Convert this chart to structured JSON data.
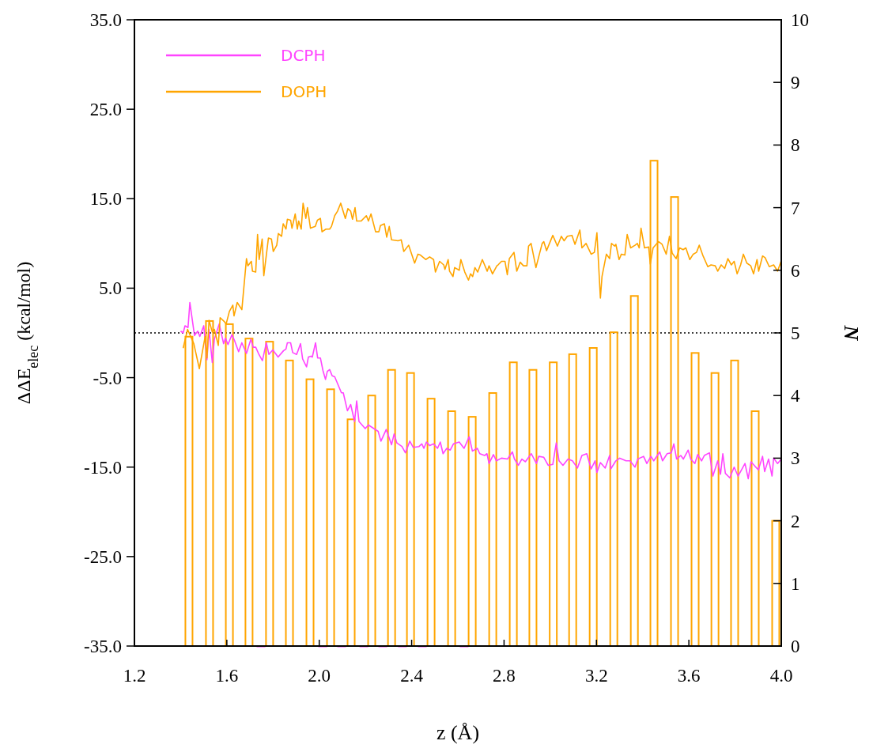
{
  "chart_data": {
    "type": "line",
    "xlabel": "z (Å)",
    "ylabel": "ΔΔE$_{elec}$ (kcal/mol)",
    "y2label": "N",
    "xlim": [
      1.2,
      4.0
    ],
    "xticks": [
      1.2,
      1.6,
      {
        "value": 2.0,
        "label": "2.0"
      },
      2.4,
      2.8,
      3.2,
      3.6,
      {
        "value": 4.0,
        "label": "4.0"
      }
    ],
    "ylim": [
      -35,
      35
    ],
    "yticks": [
      {
        "value": -35,
        "label": "-35.0"
      },
      {
        "value": -25,
        "label": "-25.0"
      },
      {
        "value": -15,
        "label": "-15.0"
      },
      {
        "value": -5,
        "label": "-5.0"
      },
      {
        "value": 5,
        "label": "5.0"
      },
      {
        "value": 15,
        "label": "15.0"
      },
      {
        "value": 25,
        "label": "25.0"
      },
      {
        "value": 35,
        "label": "35.0"
      }
    ],
    "y2lim": [
      0,
      10
    ],
    "y2ticks": [
      0,
      1,
      2,
      3,
      4,
      5,
      6,
      7,
      8,
      9,
      10
    ],
    "legend": "top left",
    "ref_lines": [
      {
        "axis": "y",
        "value": 0,
        "color": "#000000",
        "line_style": "dotted"
      }
    ],
    "series": [
      {
        "type": "bar",
        "axis": "y2",
        "color": "#ffa500",
        "x": [
          1.436,
          1.525,
          1.611,
          1.696,
          1.785,
          1.871,
          1.96,
          2.049,
          2.138,
          2.227,
          2.313,
          2.395,
          2.484,
          2.573,
          2.662,
          2.751,
          2.84,
          2.925,
          3.013,
          3.097,
          3.186,
          3.275,
          3.364,
          3.449,
          3.538,
          3.627,
          3.713,
          3.798,
          3.887,
          3.976
        ],
        "values": [
          4.94,
          5.19,
          5.14,
          4.91,
          4.86,
          4.56,
          4.26,
          4.1,
          3.62,
          4.0,
          4.41,
          4.36,
          3.95,
          3.75,
          3.66,
          4.04,
          4.53,
          4.41,
          4.53,
          4.66,
          4.76,
          5.01,
          5.59,
          7.75,
          7.17,
          4.68,
          4.36,
          4.56,
          3.75,
          2.0
        ]
      },
      {
        "type": "bar",
        "axis": "y2",
        "color": "#ff44ff",
        "x": [
          1.748,
          2.015,
          2.097,
          2.193,
          2.275,
          2.36,
          2.446,
          2.627
        ],
        "values": [
          0,
          0,
          0,
          0,
          0,
          0,
          0,
          0
        ]
      },
      {
        "name": "DCPH",
        "color": "#ff44ff",
        "x": [
          1.4,
          1.411,
          1.419,
          1.432,
          1.44,
          1.46,
          1.474,
          1.483,
          1.5,
          1.514,
          1.523,
          1.537,
          1.546,
          1.567,
          1.586,
          1.594,
          1.605,
          1.622,
          1.634,
          1.651,
          1.665,
          1.685,
          1.704,
          1.714,
          1.725,
          1.737,
          1.754,
          1.771,
          1.782,
          1.799,
          1.822,
          1.845,
          1.856,
          1.862,
          1.876,
          1.885,
          1.902,
          1.908,
          1.919,
          1.928,
          1.945,
          1.953,
          1.964,
          1.97,
          1.984,
          1.993,
          2.005,
          2.016,
          2.027,
          2.035,
          2.045,
          2.056,
          2.067,
          2.096,
          2.104,
          2.122,
          2.136,
          2.153,
          2.162,
          2.172,
          2.199,
          2.213,
          2.255,
          2.267,
          2.29,
          2.313,
          2.324,
          2.336,
          2.358,
          2.373,
          2.392,
          2.407,
          2.432,
          2.444,
          2.453,
          2.464,
          2.478,
          2.495,
          2.512,
          2.524,
          2.536,
          2.552,
          2.567,
          2.581,
          2.606,
          2.627,
          2.649,
          2.663,
          2.684,
          2.695,
          2.716,
          2.726,
          2.735,
          2.754,
          2.767,
          2.789,
          2.815,
          2.836,
          2.845,
          2.862,
          2.877,
          2.892,
          2.918,
          2.94,
          2.95,
          2.972,
          2.991,
          3.011,
          3.026,
          3.038,
          3.055,
          3.077,
          3.096,
          3.118,
          3.137,
          3.158,
          3.177,
          3.194,
          3.202,
          3.217,
          3.238,
          3.257,
          3.262,
          3.284,
          3.301,
          3.328,
          3.345,
          3.367,
          3.379,
          3.404,
          3.418,
          3.436,
          3.448,
          3.474,
          3.486,
          3.506,
          3.524,
          3.535,
          3.547,
          3.565,
          3.576,
          3.597,
          3.608,
          3.626,
          3.638,
          3.655,
          3.667,
          3.689,
          3.704,
          3.725,
          3.737,
          3.747,
          3.758,
          3.777,
          3.796,
          3.813,
          3.843,
          3.857,
          3.869,
          3.886,
          3.901,
          3.919,
          3.928,
          3.945,
          3.96,
          3.967,
          3.984,
          4.0
        ],
        "values": [
          0.2,
          0.0,
          0.8,
          0.6,
          3.4,
          -0.3,
          0.2,
          -0.4,
          0.8,
          -3.0,
          0.4,
          -3.3,
          -0.7,
          1.0,
          -1.2,
          -0.6,
          -1.3,
          -0.2,
          -0.9,
          -2.1,
          -1.1,
          -2.3,
          -0.7,
          -1.6,
          -1.6,
          -2.3,
          -3.1,
          -1.1,
          -2.4,
          -1.9,
          -2.7,
          -2.0,
          -1.8,
          -1.1,
          -1.1,
          -2.2,
          -2.4,
          -2.0,
          -1.2,
          -2.9,
          -3.8,
          -2.7,
          -2.6,
          -2.7,
          -1.1,
          -2.8,
          -2.8,
          -4.2,
          -5.2,
          -4.3,
          -4.1,
          -4.8,
          -4.9,
          -6.7,
          -6.7,
          -8.7,
          -8.0,
          -9.9,
          -7.6,
          -9.9,
          -10.7,
          -10.3,
          -11.0,
          -12.1,
          -10.8,
          -12.5,
          -11.3,
          -12.3,
          -12.7,
          -13.4,
          -12.1,
          -12.8,
          -12.7,
          -12.4,
          -12.9,
          -12.2,
          -12.6,
          -12.4,
          -12.9,
          -12.2,
          -13.5,
          -12.9,
          -13.1,
          -12.4,
          -12.2,
          -12.9,
          -11.6,
          -13.2,
          -12.9,
          -13.5,
          -13.7,
          -13.5,
          -14.6,
          -13.6,
          -14.3,
          -14.0,
          -14.1,
          -13.3,
          -14.1,
          -14.8,
          -14.1,
          -14.4,
          -13.5,
          -14.6,
          -13.8,
          -13.9,
          -14.8,
          -14.7,
          -12.3,
          -14.3,
          -14.8,
          -14.1,
          -14.3,
          -15.1,
          -13.7,
          -13.5,
          -15.2,
          -14.3,
          -15.6,
          -14.5,
          -15.1,
          -13.7,
          -15.2,
          -14.3,
          -14.0,
          -14.3,
          -14.3,
          -15.0,
          -14.1,
          -13.8,
          -14.6,
          -13.8,
          -14.3,
          -13.3,
          -14.3,
          -13.5,
          -13.4,
          -12.4,
          -14.1,
          -13.7,
          -14.1,
          -13.1,
          -14.1,
          -14.6,
          -13.6,
          -14.3,
          -13.7,
          -13.4,
          -16.0,
          -14.3,
          -15.8,
          -13.5,
          -15.7,
          -16.2,
          -15.0,
          -16.0,
          -14.6,
          -16.3,
          -14.4,
          -14.9,
          -15.3,
          -13.8,
          -15.5,
          -14.1,
          -16.0,
          -14.0,
          -14.6,
          -14.1
        ]
      },
      {
        "name": "DOPH",
        "color": "#ffa500",
        "x": [
          1.411,
          1.43,
          1.457,
          1.481,
          1.506,
          1.514,
          1.523,
          1.537,
          1.546,
          1.563,
          1.571,
          1.588,
          1.597,
          1.611,
          1.626,
          1.631,
          1.645,
          1.665,
          1.685,
          1.691,
          1.706,
          1.711,
          1.725,
          1.733,
          1.74,
          1.753,
          1.76,
          1.78,
          1.793,
          1.801,
          1.816,
          1.823,
          1.837,
          1.844,
          1.856,
          1.862,
          1.876,
          1.882,
          1.896,
          1.905,
          1.911,
          1.922,
          1.93,
          1.942,
          1.949,
          1.962,
          1.983,
          1.992,
          2.005,
          2.012,
          2.029,
          2.045,
          2.053,
          2.067,
          2.079,
          2.093,
          2.113,
          2.124,
          2.136,
          2.144,
          2.155,
          2.162,
          2.181,
          2.204,
          2.213,
          2.224,
          2.244,
          2.258,
          2.265,
          2.282,
          2.292,
          2.303,
          2.313,
          2.341,
          2.355,
          2.366,
          2.387,
          2.413,
          2.427,
          2.438,
          2.461,
          2.478,
          2.495,
          2.503,
          2.521,
          2.539,
          2.544,
          2.558,
          2.564,
          2.579,
          2.586,
          2.606,
          2.613,
          2.63,
          2.646,
          2.655,
          2.664,
          2.674,
          2.686,
          2.706,
          2.727,
          2.735,
          2.75,
          2.769,
          2.774,
          2.789,
          2.804,
          2.814,
          2.823,
          2.843,
          2.855,
          2.87,
          2.884,
          2.899,
          2.906,
          2.917,
          2.938,
          2.965,
          2.972,
          2.984,
          3.011,
          3.031,
          3.048,
          3.06,
          3.074,
          3.094,
          3.107,
          3.128,
          3.137,
          3.155,
          3.177,
          3.191,
          3.202,
          3.217,
          3.224,
          3.243,
          3.257,
          3.265,
          3.279,
          3.284,
          3.298,
          3.308,
          3.323,
          3.333,
          3.348,
          3.367,
          3.377,
          3.385,
          3.393,
          3.408,
          3.426,
          3.433,
          3.445,
          3.469,
          3.484,
          3.502,
          3.516,
          3.528,
          3.545,
          3.56,
          3.575,
          3.587,
          3.604,
          3.619,
          3.633,
          3.645,
          3.66,
          3.682,
          3.696,
          3.714,
          3.725,
          3.74,
          3.755,
          3.769,
          3.784,
          3.796,
          3.809,
          3.824,
          3.836,
          3.851,
          3.868,
          3.88,
          3.895,
          3.902,
          3.919,
          3.93,
          3.948,
          3.967,
          3.984,
          3.999
        ],
        "values": [
          -1.7,
          0.4,
          -1.2,
          -4.0,
          -0.4,
          -2.8,
          1.4,
          0.1,
          0.4,
          -1.4,
          1.7,
          1.3,
          1.0,
          2.4,
          3.1,
          1.9,
          3.4,
          2.6,
          8.3,
          7.5,
          8.0,
          6.9,
          6.8,
          11.0,
          8.2,
          10.5,
          6.4,
          10.6,
          10.5,
          9.1,
          9.8,
          11.1,
          10.8,
          12.2,
          11.6,
          12.7,
          12.6,
          11.7,
          13.3,
          11.6,
          12.5,
          11.6,
          14.5,
          12.8,
          14.0,
          11.7,
          11.9,
          12.6,
          12.8,
          11.3,
          11.6,
          11.6,
          11.9,
          13.1,
          13.6,
          14.5,
          12.8,
          13.9,
          13.6,
          12.7,
          14.0,
          12.5,
          12.5,
          13.1,
          12.5,
          13.3,
          11.3,
          11.3,
          12.0,
          12.2,
          10.7,
          11.9,
          10.4,
          10.3,
          10.4,
          9.1,
          9.8,
          7.8,
          8.8,
          8.7,
          8.2,
          8.5,
          8.2,
          6.8,
          8.0,
          7.6,
          7.1,
          8.2,
          6.9,
          6.3,
          7.3,
          7.0,
          8.2,
          6.8,
          5.9,
          6.6,
          6.3,
          7.3,
          6.8,
          8.2,
          6.9,
          7.5,
          6.6,
          7.5,
          7.6,
          8.0,
          8.0,
          6.5,
          8.3,
          9.0,
          6.9,
          7.9,
          7.5,
          7.5,
          9.7,
          10.0,
          7.3,
          10.0,
          10.2,
          9.2,
          10.9,
          9.7,
          10.8,
          10.3,
          10.8,
          10.9,
          9.9,
          11.5,
          9.5,
          10.0,
          8.8,
          9.0,
          11.2,
          3.9,
          6.3,
          8.8,
          8.3,
          10.0,
          9.7,
          9.9,
          8.2,
          8.8,
          8.7,
          11.0,
          9.5,
          9.8,
          10.0,
          9.5,
          11.7,
          9.5,
          9.6,
          7.7,
          9.5,
          10.2,
          9.9,
          8.8,
          10.8,
          8.9,
          8.3,
          9.5,
          9.3,
          9.5,
          8.2,
          8.8,
          9.0,
          9.8,
          8.7,
          7.4,
          7.6,
          7.5,
          6.9,
          7.6,
          7.2,
          8.3,
          7.6,
          8.0,
          6.6,
          7.6,
          8.8,
          7.8,
          7.5,
          6.6,
          8.2,
          6.9,
          8.6,
          8.4,
          7.4,
          7.6,
          6.9,
          8.0
        ]
      }
    ]
  }
}
